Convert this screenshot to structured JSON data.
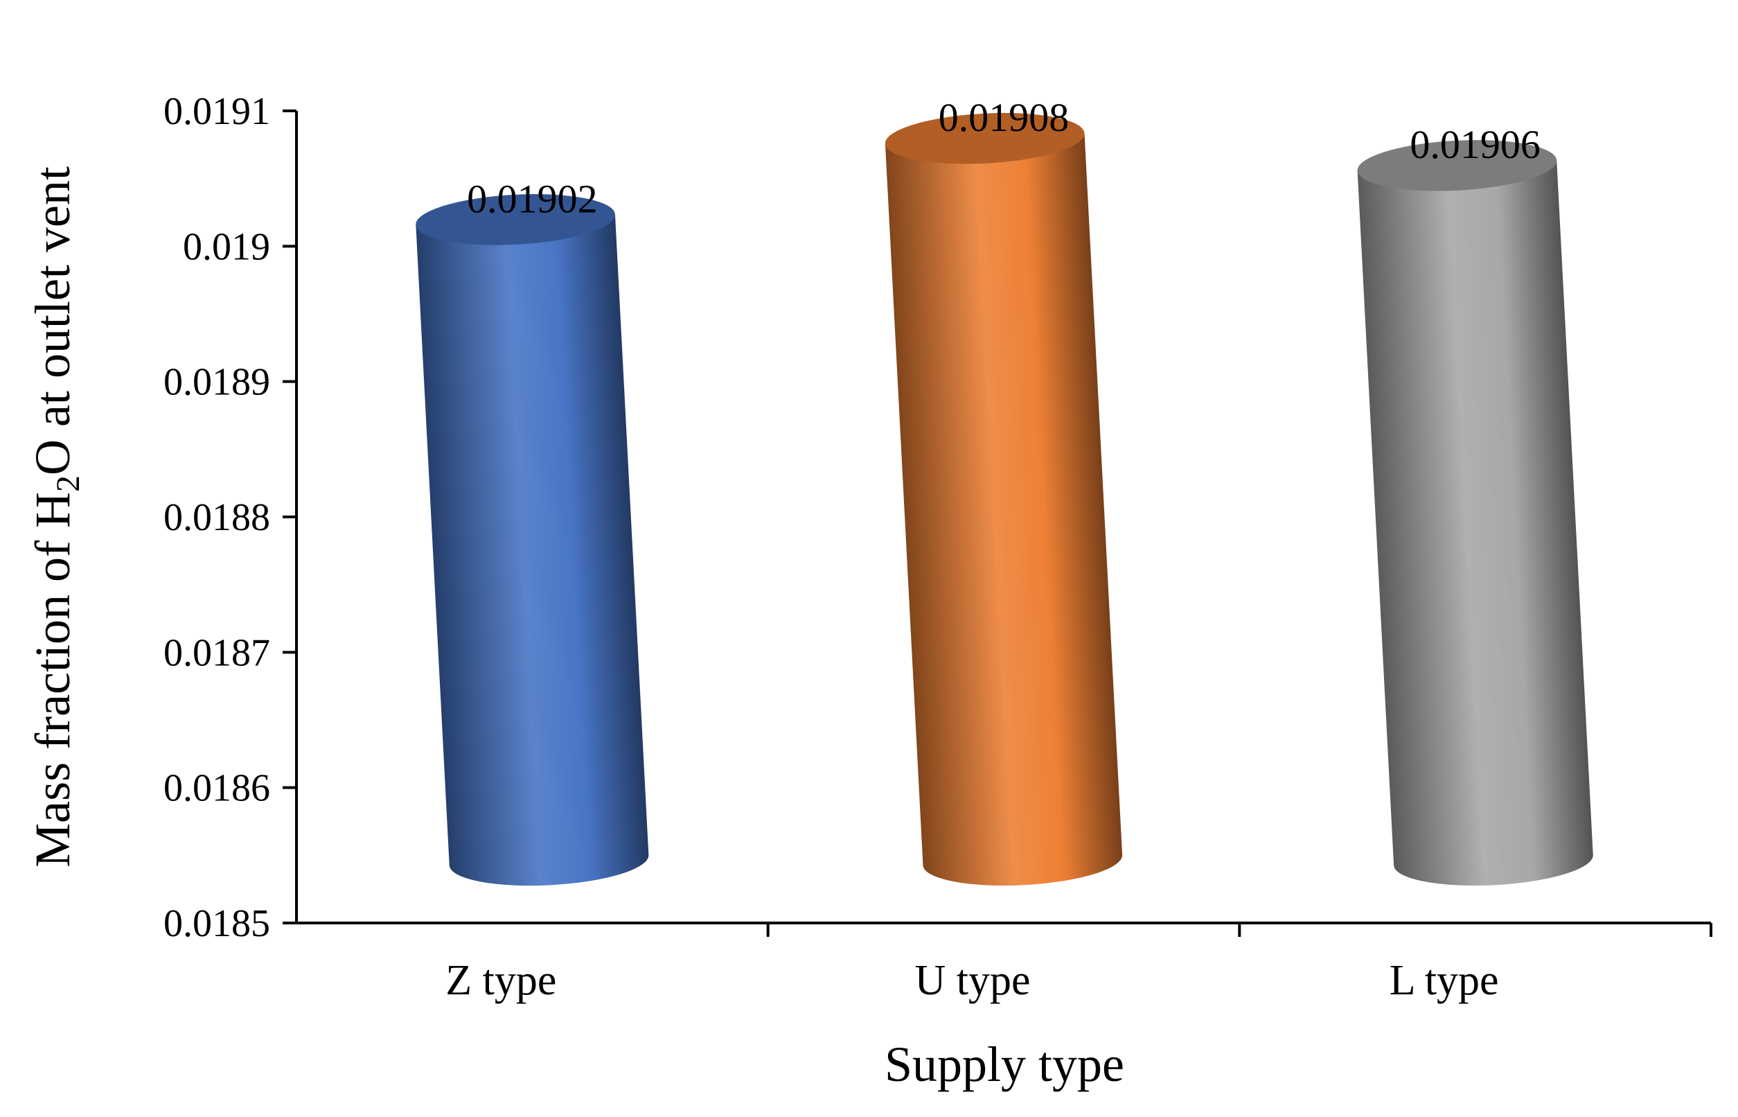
{
  "chart_data": {
    "type": "bar",
    "style": "3d-cylinder",
    "categories": [
      "Z type",
      "U type",
      "L type"
    ],
    "values": [
      0.01902,
      0.01908,
      0.01906
    ],
    "data_labels": [
      "0.01902",
      "0.01908",
      "0.01906"
    ],
    "xlabel": "Supply type",
    "ylabel": {
      "before": "Mass fraction of H",
      "subscript": "2",
      "after": "O at outlet vent"
    },
    "ylim": [
      0.0185,
      0.0191
    ],
    "yticks": [
      0.0185,
      0.0186,
      0.0187,
      0.0188,
      0.0189,
      0.019,
      0.0191
    ],
    "ytick_labels": [
      "0.0185",
      "0.0186",
      "0.0187",
      "0.0188",
      "0.0189",
      "0.019",
      "0.0191"
    ],
    "grid": false,
    "legend": "none",
    "colors": [
      "#4472C4",
      "#ED7D31",
      "#A5A5A5"
    ]
  }
}
